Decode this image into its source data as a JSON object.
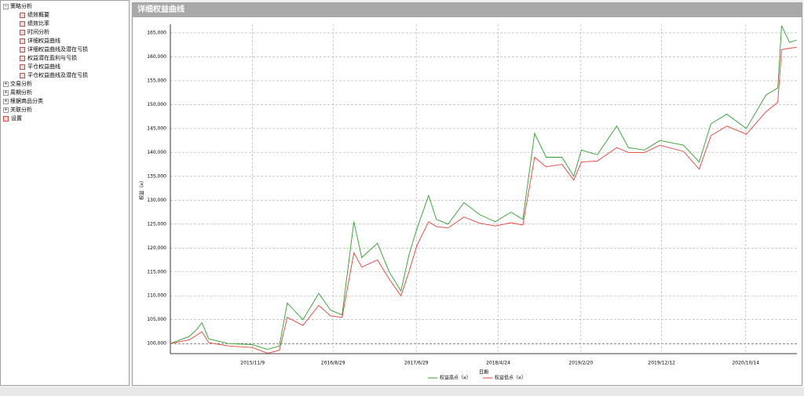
{
  "sidebar": {
    "items": [
      {
        "label": "策略分析",
        "children": [
          "绩效概要",
          "绩效比率",
          "时间分析",
          "详细权益曲线",
          "详细权益曲线及潜在亏损",
          "权益潜在盈利与亏损",
          "平仓权益曲线",
          "平仓权益曲线及潜在亏损"
        ]
      },
      {
        "label": "交易分析"
      },
      {
        "label": "周期分析"
      },
      {
        "label": "根据商品分类"
      },
      {
        "label": "关联分析"
      },
      {
        "label": "设置"
      }
    ]
  },
  "panel": {
    "title": "详细权益曲线"
  },
  "chart_data": {
    "type": "line",
    "xlabel": "日期",
    "ylabel": "权益（¤）",
    "x": [
      "2015/1/13",
      "2015/3/23",
      "2015/4/20",
      "2015/5/8",
      "2015/6/2",
      "2015/8/13",
      "2015/11/7",
      "2016/1/3",
      "2016/2/15",
      "2016/3/15",
      "2016/5/11",
      "2016/7/8",
      "2016/8/20",
      "2016/10/1",
      "2016/11/13",
      "2016/12/12",
      "2017/2/7",
      "2017/3/22",
      "2017/5/4",
      "2017/6/2",
      "2017/7/1",
      "2017/8/13",
      "2017/9/10",
      "2017/10/23",
      "2017/12/20",
      "2018/2/15",
      "2018/4/13",
      "2018/6/10",
      "2018/7/23",
      "2018/9/4",
      "2018/10/16",
      "2018/12/13",
      "2019/1/25",
      "2019/2/22",
      "2019/4/21",
      "2019/7/1",
      "2019/8/13",
      "2019/10/10",
      "2019/12/6",
      "2020/3/1",
      "2020/4/27",
      "2020/6/9",
      "2020/8/6",
      "2020/10/16",
      "2020/12/27",
      "2021/2/8",
      "2021/2/22",
      "2021/3/23",
      "2021/4/18"
    ],
    "series": [
      {
        "name": "权益高点（¤）",
        "color": "#2ca02c",
        "values": [
          100000,
          101500,
          103000,
          104400,
          101000,
          100000,
          99800,
          98800,
          99500,
          108500,
          105000,
          110500,
          107000,
          106000,
          125500,
          118000,
          121000,
          115000,
          111000,
          118500,
          124000,
          131000,
          126000,
          125000,
          129500,
          127000,
          125500,
          127500,
          126000,
          144000,
          139000,
          139000,
          135000,
          140500,
          139500,
          145500,
          141000,
          140500,
          142500,
          141500,
          138000,
          146000,
          148000,
          145000,
          152000,
          153500,
          166500,
          163000,
          163500
        ]
      },
      {
        "name": "权益低点（¤）",
        "color": "#e8403a",
        "values": [
          100000,
          100800,
          101800,
          102500,
          100200,
          99500,
          99200,
          98000,
          98600,
          105500,
          103800,
          108000,
          105800,
          105500,
          119000,
          116000,
          117500,
          113500,
          110000,
          115000,
          120500,
          125500,
          124500,
          124200,
          126500,
          125200,
          124600,
          125300,
          124800,
          139000,
          137000,
          137500,
          134200,
          138000,
          138200,
          141000,
          140000,
          140000,
          141500,
          140200,
          136500,
          143500,
          145500,
          143800,
          148500,
          150500,
          161500,
          161800,
          162000
        ]
      }
    ],
    "xticks": [
      "2015/11/9",
      "2016/8/29",
      "2017/6/29",
      "2018/4/24",
      "2019/2/20",
      "2019/12/12",
      "2020/10/14"
    ],
    "xlim": [
      "2015/1/13",
      "2021/4/19"
    ],
    "ylim": [
      97900,
      166800
    ],
    "yticks": [
      {
        "value": 100000,
        "label": "100,000"
      },
      {
        "value": 105000,
        "label": "105,000"
      },
      {
        "value": 110000,
        "label": "110,000"
      },
      {
        "value": 115000,
        "label": "115,000"
      },
      {
        "value": 120000,
        "label": "120,000"
      },
      {
        "value": 125000,
        "label": "125,000"
      },
      {
        "value": 130000,
        "label": "130,000"
      },
      {
        "value": 135000,
        "label": "135,000"
      },
      {
        "value": 140000,
        "label": "140,000"
      },
      {
        "value": 145000,
        "label": "145,000"
      },
      {
        "value": 150000,
        "label": "150,000"
      },
      {
        "value": 155000,
        "label": "155,000"
      },
      {
        "value": 160000,
        "label": "160,000"
      },
      {
        "value": 165000,
        "label": "165,000"
      }
    ],
    "grid": true
  }
}
